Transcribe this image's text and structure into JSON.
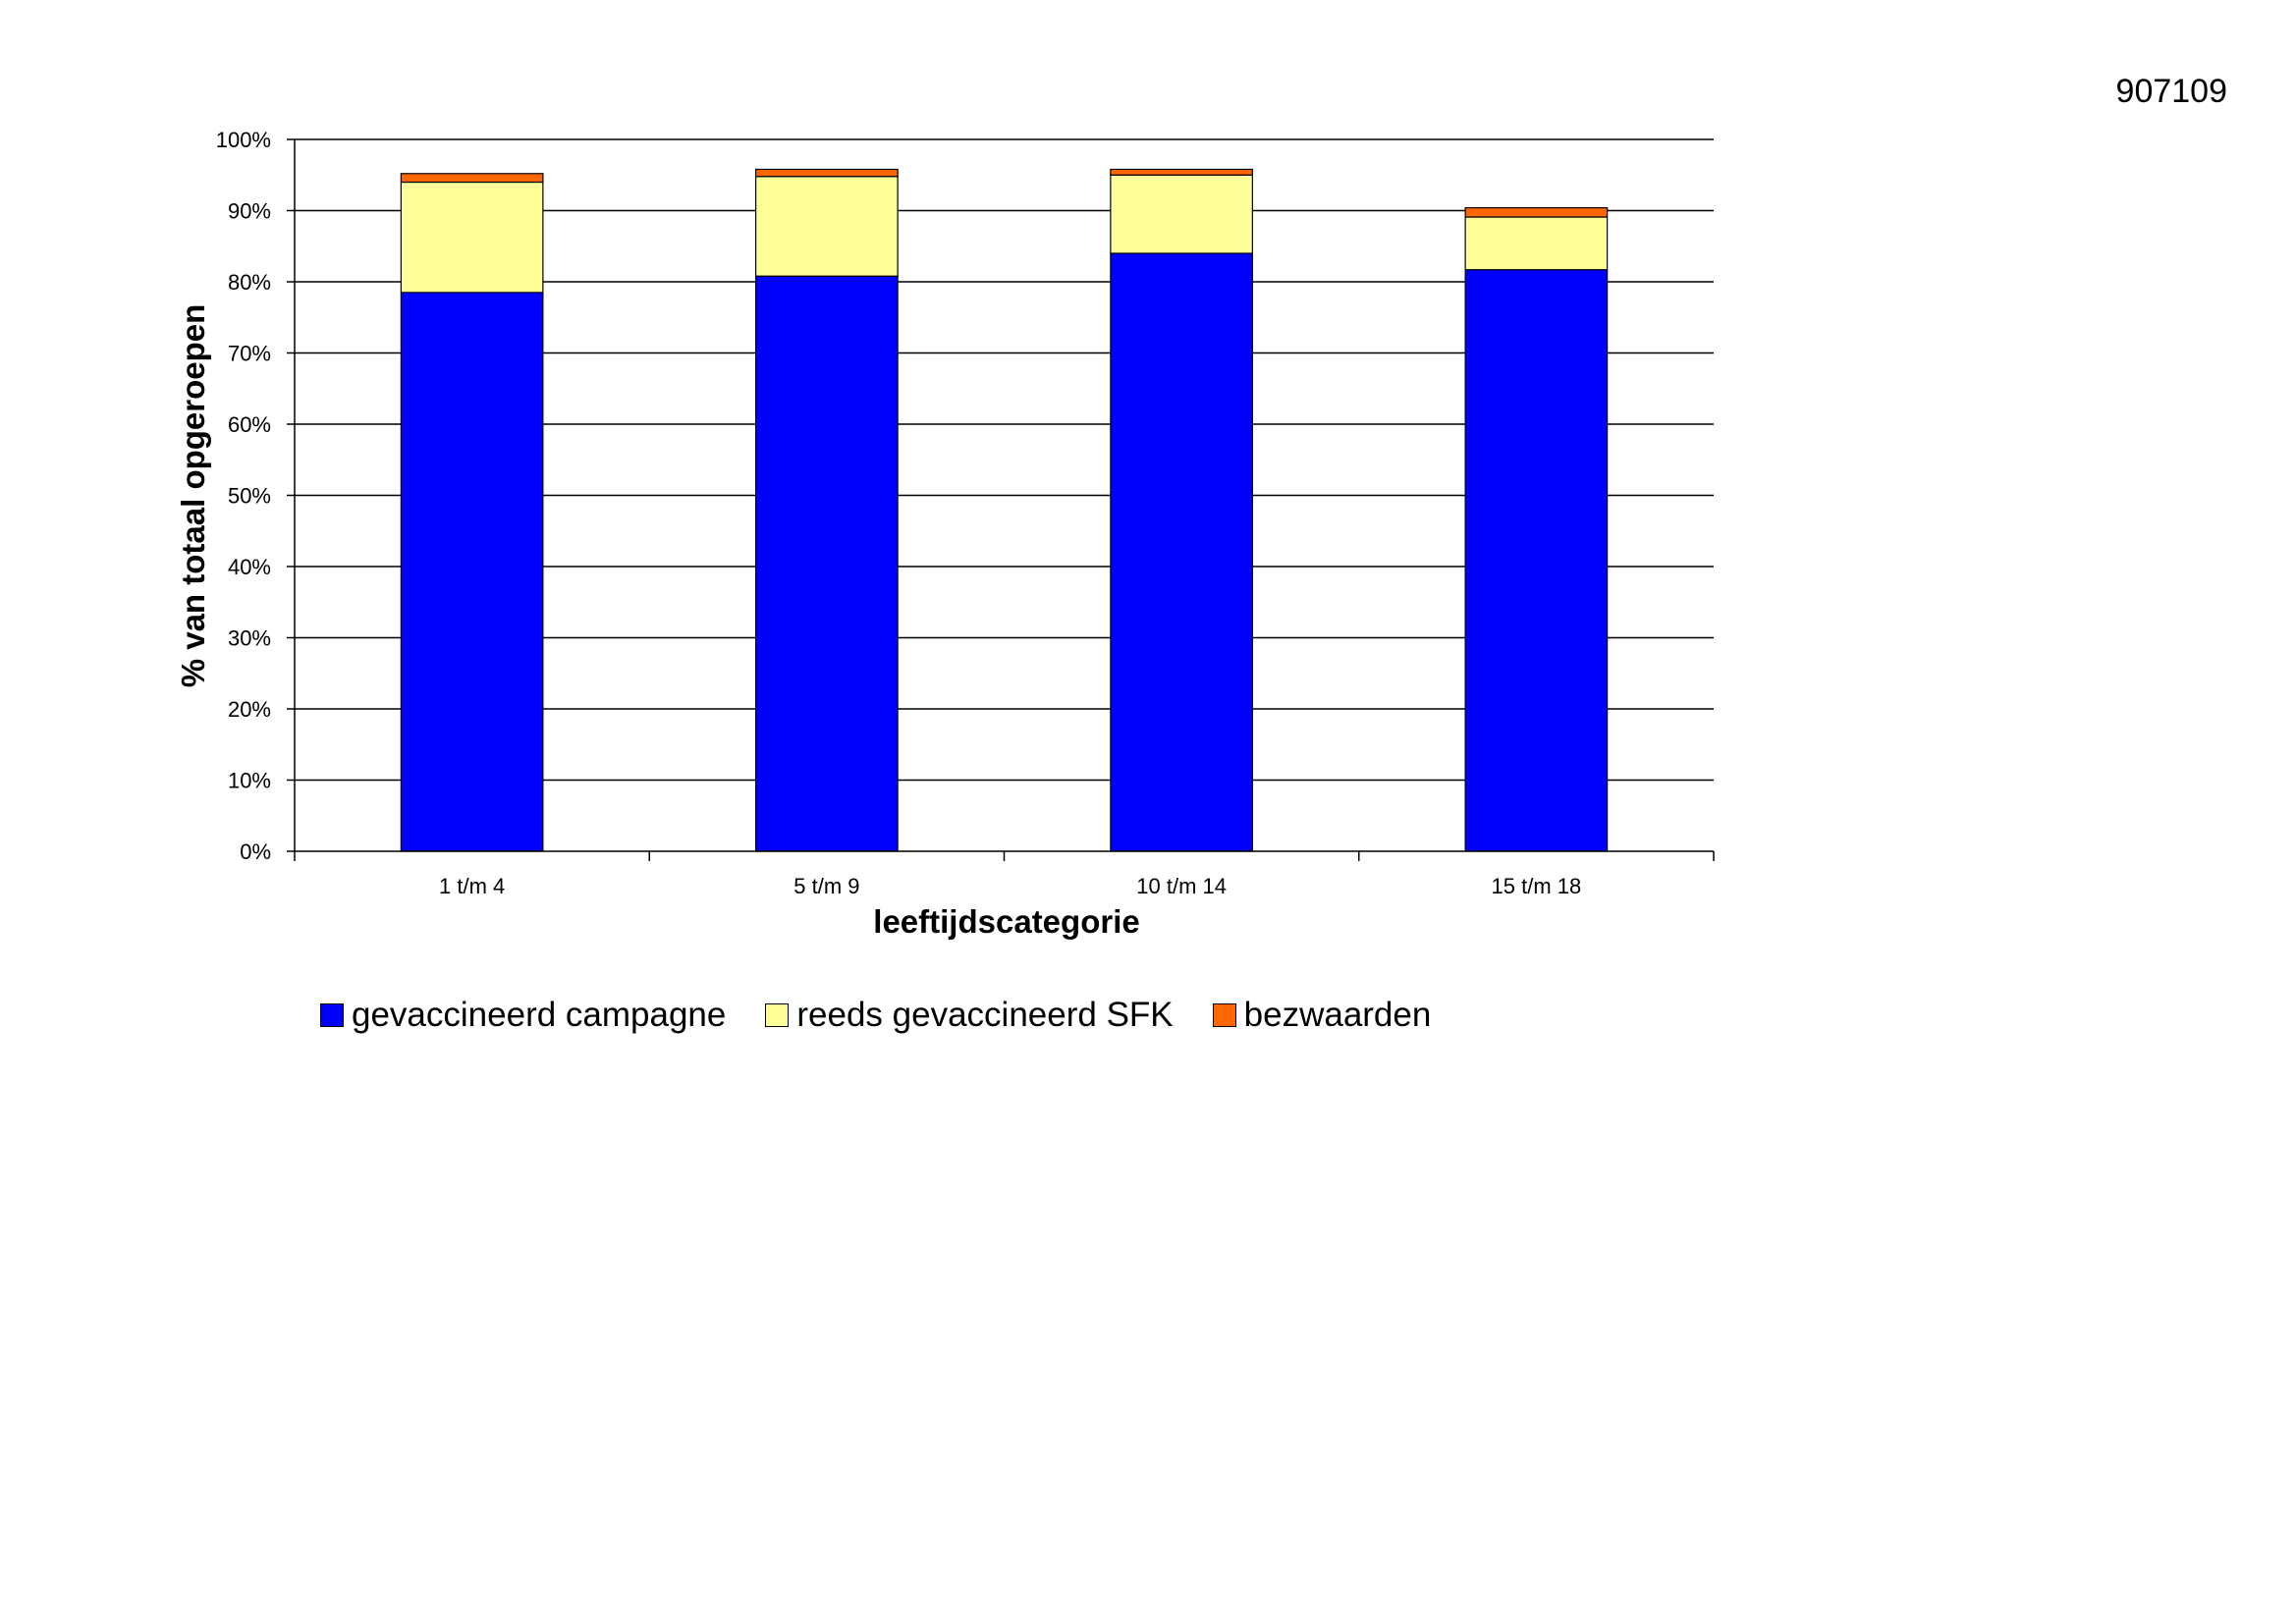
{
  "document": {
    "id": "907109"
  },
  "chart_data": {
    "type": "bar",
    "stacked": true,
    "categories": [
      "1 t/m 4",
      "5 t/m 9",
      "10 t/m 14",
      "15 t/m 18"
    ],
    "series": [
      {
        "name": "gevaccineerd campagne",
        "color": "#0000FF",
        "values": [
          78.5,
          80.8,
          84.0,
          81.7
        ]
      },
      {
        "name": "reeds gevaccineerd SFK",
        "color": "#FFFF99",
        "values": [
          15.5,
          14.0,
          11.0,
          7.4
        ]
      },
      {
        "name": "bezwaarden",
        "color": "#FF6600",
        "values": [
          1.2,
          1.0,
          0.8,
          1.3
        ]
      }
    ],
    "title": "",
    "xlabel": "leeftijdscategorie",
    "ylabel": "% van totaal opgeroepen",
    "ylim": [
      0,
      100
    ],
    "yticks": [
      "0%",
      "10%",
      "20%",
      "30%",
      "40%",
      "50%",
      "60%",
      "70%",
      "80%",
      "90%",
      "100%"
    ],
    "grid": true,
    "legend_position": "bottom"
  }
}
